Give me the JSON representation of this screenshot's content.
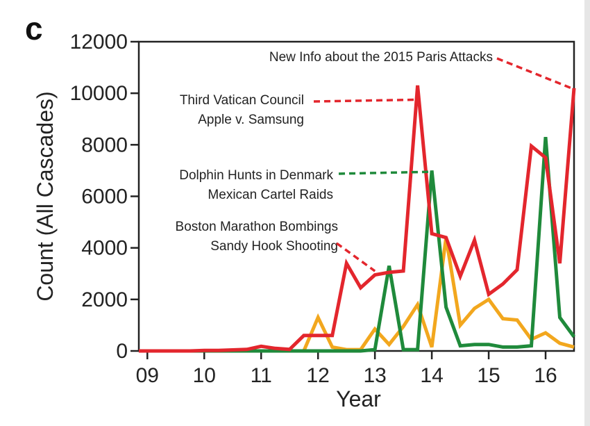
{
  "panel_label": "c",
  "colors": {
    "red": "#e3262d",
    "green": "#1f8a3b",
    "orange": "#f2a71e",
    "axis": "#222222"
  },
  "chart_data": {
    "type": "line",
    "xlabel": "Year",
    "ylabel": "Count (All Cascades)",
    "xlim": [
      8.85,
      16.5
    ],
    "ylim": [
      0,
      12000
    ],
    "xticks": [
      9,
      10,
      11,
      12,
      13,
      14,
      15,
      16
    ],
    "xtick_labels": [
      "09",
      "10",
      "11",
      "12",
      "13",
      "14",
      "15",
      "16"
    ],
    "yticks": [
      0,
      2000,
      4000,
      6000,
      8000,
      10000,
      12000
    ],
    "ytick_labels": [
      "0",
      "2000",
      "4000",
      "6000",
      "8000",
      "10000",
      "12000"
    ],
    "series": [
      {
        "color": "red",
        "x": [
          8.85,
          9.0,
          9.25,
          9.5,
          9.75,
          10.0,
          10.25,
          10.5,
          10.75,
          11.0,
          11.25,
          11.5,
          11.75,
          12.0,
          12.25,
          12.5,
          12.75,
          13.0,
          13.25,
          13.5,
          13.75,
          14.0,
          14.25,
          14.5,
          14.75,
          15.0,
          15.25,
          15.5,
          15.75,
          16.0,
          16.25,
          16.5
        ],
        "y": [
          0,
          0,
          0,
          0,
          0,
          20,
          20,
          40,
          60,
          180,
          100,
          60,
          600,
          600,
          600,
          3400,
          2450,
          2950,
          3050,
          3100,
          10300,
          4550,
          4400,
          2900,
          4300,
          2200,
          2600,
          3150,
          7950,
          7500,
          3400,
          10200
        ]
      },
      {
        "color": "green",
        "x": [
          8.85,
          9.0,
          10.0,
          11.0,
          12.0,
          12.5,
          12.75,
          13.0,
          13.25,
          13.5,
          13.75,
          14.0,
          14.25,
          14.5,
          14.75,
          15.0,
          15.25,
          15.5,
          15.75,
          16.0,
          16.25,
          16.5
        ],
        "y": [
          0,
          0,
          0,
          0,
          0,
          0,
          0,
          50,
          3300,
          50,
          50,
          7000,
          1700,
          200,
          250,
          250,
          150,
          150,
          200,
          8300,
          1300,
          550
        ]
      },
      {
        "color": "orange",
        "x": [
          8.85,
          9.0,
          10.0,
          11.0,
          11.75,
          12.0,
          12.25,
          12.5,
          12.75,
          13.0,
          13.25,
          13.5,
          13.75,
          14.0,
          14.25,
          14.5,
          14.75,
          15.0,
          15.25,
          15.5,
          15.75,
          16.0,
          16.25,
          16.5
        ],
        "y": [
          0,
          0,
          0,
          0,
          0,
          1300,
          150,
          50,
          50,
          850,
          250,
          950,
          1800,
          150,
          4400,
          1000,
          1650,
          2000,
          1250,
          1200,
          450,
          700,
          300,
          150
        ]
      }
    ],
    "annotations": [
      {
        "lines": [
          "New Info about the 2015 Paris Attacks"
        ],
        "color": "red",
        "target": [
          16.45,
          10200
        ]
      },
      {
        "lines": [
          "Third Vatican Council",
          "Apple v. Samsung"
        ],
        "color": "red",
        "target": [
          13.75,
          9750
        ]
      },
      {
        "lines": [
          "Dolphin Hunts in Denmark",
          "Mexican Cartel Raids"
        ],
        "color": "green",
        "target": [
          13.95,
          6950
        ]
      },
      {
        "lines": [
          "Boston Marathon Bombings",
          "Sandy Hook Shooting"
        ],
        "color": "red",
        "target": [
          13.0,
          3100
        ]
      }
    ]
  }
}
